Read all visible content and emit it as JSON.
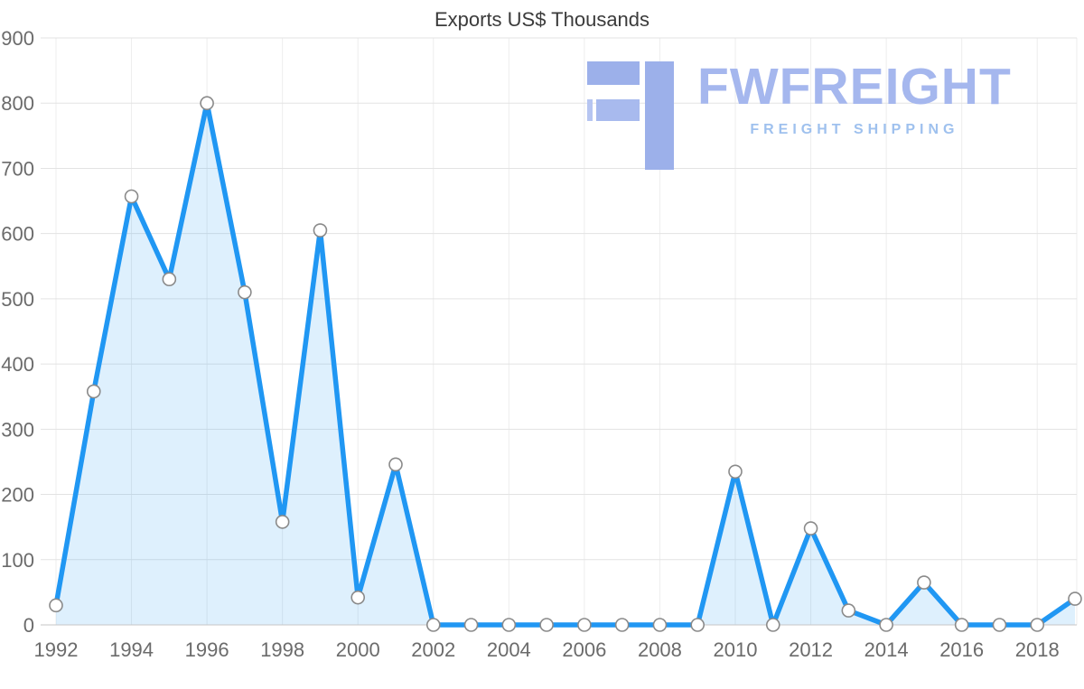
{
  "logo": {
    "name": "FWFREIGHT",
    "tagline": "FREIGHT SHIPPING",
    "color": "#a5b7ee"
  },
  "chart_data": {
    "type": "area",
    "title": "Exports US$ Thousands",
    "x": [
      1992,
      1993,
      1994,
      1995,
      1996,
      1997,
      1998,
      1999,
      2000,
      2001,
      2002,
      2003,
      2004,
      2005,
      2006,
      2007,
      2008,
      2009,
      2010,
      2011,
      2012,
      2013,
      2014,
      2015,
      2016,
      2017,
      2018,
      2019
    ],
    "values": [
      30,
      358,
      657,
      530,
      800,
      510,
      158,
      605,
      42,
      246,
      0,
      0,
      0,
      0,
      0,
      0,
      0,
      0,
      235,
      0,
      148,
      22,
      0,
      65,
      0,
      0,
      0,
      40
    ],
    "xticks": [
      1992,
      1994,
      1996,
      1998,
      2000,
      2002,
      2004,
      2006,
      2008,
      2010,
      2012,
      2014,
      2016,
      2018
    ],
    "yticks": [
      0,
      100,
      200,
      300,
      400,
      500,
      600,
      700,
      800,
      900
    ],
    "ylim": [
      0,
      900
    ],
    "grid": true,
    "legend": "none",
    "xlabel": "",
    "ylabel": "",
    "colors": {
      "line": "#2097f3",
      "fill": "rgba(32,151,243,0.15)",
      "marker_fill": "#ffffff",
      "marker_stroke": "#8a8a8a",
      "grid_h": "#e3e3e3",
      "grid_v": "#ededed",
      "axis": "#c6c6c6",
      "tick_label": "#6b6b6b",
      "title": "#3b3b3b"
    }
  }
}
